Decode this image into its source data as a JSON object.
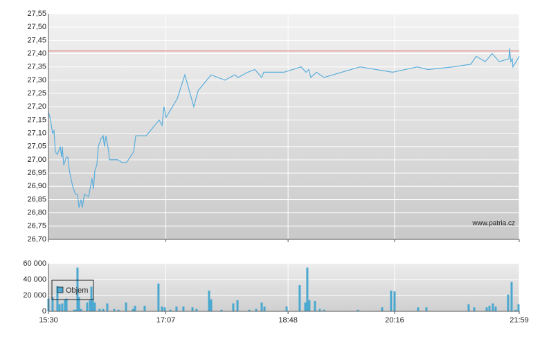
{
  "chart_data": [
    {
      "type": "line",
      "xlim": [
        930,
        1319
      ],
      "xticks": [
        {
          "value": 930,
          "label": "15:30"
        },
        {
          "value": 1027,
          "label": "17:07"
        },
        {
          "value": 1128,
          "label": "18:48"
        },
        {
          "value": 1216,
          "label": "20:16"
        },
        {
          "value": 1319,
          "label": "21:59"
        }
      ],
      "ylim": [
        26.7,
        27.55
      ],
      "yticks": [
        {
          "value": 26.7,
          "label": "26,70"
        },
        {
          "value": 26.75,
          "label": "26,75"
        },
        {
          "value": 26.8,
          "label": "26,80"
        },
        {
          "value": 26.85,
          "label": "26,85"
        },
        {
          "value": 26.9,
          "label": "26,90"
        },
        {
          "value": 26.95,
          "label": "26,95"
        },
        {
          "value": 27.0,
          "label": "27,00"
        },
        {
          "value": 27.05,
          "label": "27,05"
        },
        {
          "value": 27.1,
          "label": "27,10"
        },
        {
          "value": 27.15,
          "label": "27,15"
        },
        {
          "value": 27.2,
          "label": "27,20"
        },
        {
          "value": 27.25,
          "label": "27,25"
        },
        {
          "value": 27.3,
          "label": "27,30"
        },
        {
          "value": 27.35,
          "label": "27,35"
        },
        {
          "value": 27.4,
          "label": "27,40"
        },
        {
          "value": 27.45,
          "label": "27,45"
        },
        {
          "value": 27.5,
          "label": "27,50"
        },
        {
          "value": 27.55,
          "label": "27,55"
        }
      ],
      "grid": true,
      "reference_line": {
        "value": 27.41,
        "color": "#e06a6a"
      },
      "watermark": "www.patria.cz",
      "x": [
        930.0,
        931.7,
        933.4,
        934.6,
        935.7,
        937.4,
        939.7,
        940.9,
        941.4,
        942.6,
        944.9,
        946.0,
        947.2,
        950.0,
        952.3,
        954.0,
        955.2,
        956.9,
        958.0,
        959.7,
        963.2,
        966.0,
        967.2,
        968.3,
        970.0,
        971.2,
        973.5,
        975.2,
        976.3,
        977.5,
        979.8,
        980.3,
        982.1,
        983.2,
        987.2,
        990.6,
        994.6,
        1000.4,
        1002.1,
        1010.7,
        1021.5,
        1023.8,
        1025.5,
        1027.2,
        1036.4,
        1042.7,
        1050.1,
        1053.6,
        1064.4,
        1075.9,
        1083.9,
        1086.7,
        1094.7,
        1100.5,
        1106.2,
        1107.9,
        1124.5,
        1138.8,
        1142.8,
        1145.1,
        1146.8,
        1151.4,
        1157.7,
        1187.4,
        1214.3,
        1234.9,
        1243.5,
        1264.6,
        1278.9,
        1283.5,
        1290.9,
        1296.7,
        1302.4,
        1310.4,
        1311.0,
        1312.1,
        1313.2,
        1313.8,
        1319.0
      ],
      "series": [
        {
          "color": "#5aaedc",
          "values": [
            27.18,
            27.15,
            27.1,
            27.11,
            27.03,
            27.02,
            27.05,
            27.01,
            27.05,
            26.98,
            27.01,
            27.01,
            26.96,
            26.9,
            26.87,
            26.87,
            26.82,
            26.85,
            26.82,
            26.87,
            26.86,
            26.93,
            26.89,
            26.96,
            26.98,
            27.05,
            27.08,
            27.09,
            27.05,
            27.09,
            27.03,
            27.0,
            27.0,
            27.0,
            27.0,
            26.99,
            26.99,
            27.03,
            27.09,
            27.09,
            27.15,
            27.13,
            27.2,
            27.16,
            27.23,
            27.32,
            27.2,
            27.26,
            27.32,
            27.3,
            27.32,
            27.31,
            27.33,
            27.34,
            27.31,
            27.33,
            27.33,
            27.35,
            27.33,
            27.34,
            27.31,
            27.33,
            27.31,
            27.35,
            27.33,
            27.35,
            27.34,
            27.35,
            27.36,
            27.39,
            27.37,
            27.4,
            27.37,
            27.38,
            27.42,
            27.37,
            27.38,
            27.35,
            27.39
          ]
        }
      ]
    },
    {
      "type": "bar",
      "ylim": [
        0,
        60000
      ],
      "yticks": [
        0,
        {
          "value": 20000,
          "label": "20 000"
        },
        {
          "value": 40000,
          "label": "40 000"
        },
        {
          "value": 60000,
          "label": "60 000"
        }
      ],
      "legend": "upper-left",
      "x": [
        930,
        933.4,
        937.4,
        939.2,
        941.4,
        943.7,
        944.9,
        951.2,
        952.9,
        954.0,
        955.2,
        956.9,
        962.0,
        964.3,
        965.5,
        966.6,
        968.3,
        972.3,
        975.2,
        978.6,
        984.3,
        987.8,
        994.1,
        999.8,
        1001.5,
        1009.5,
        1020.9,
        1023.8,
        1026.1,
        1030.7,
        1035.8,
        1041.5,
        1049.0,
        1052.4,
        1062.7,
        1064.4,
        1073.0,
        1082.7,
        1086.2,
        1095.9,
        1101.6,
        1106.2,
        1108.5,
        1126.8,
        1137.6,
        1142.2,
        1143.9,
        1145.6,
        1150.2,
        1154.2,
        1157.7,
        1185.7,
        1205.7,
        1213.1,
        1216.0,
        1235.4,
        1242.3,
        1277.2,
        1281.8,
        1292.1,
        1294.4,
        1297.2,
        1299.5,
        1309.8,
        1312.7,
        1316.1,
        1318.4
      ],
      "series": [
        {
          "name": "Objem",
          "color": "#4aa8d0",
          "values": [
            16000,
            18000,
            32000,
            9000,
            10000,
            15000,
            16000,
            2000,
            2000,
            55000,
            18000,
            3000,
            11000,
            14000,
            31000,
            16000,
            11000,
            3000,
            3000,
            10000,
            3000,
            2000,
            11000,
            3000,
            7000,
            7000,
            35000,
            6000,
            5000,
            2000,
            6000,
            6000,
            5000,
            3000,
            26000,
            15000,
            2000,
            10000,
            14000,
            2000,
            3000,
            11000,
            6000,
            6000,
            33000,
            11000,
            55000,
            14000,
            13000,
            3000,
            2000,
            2000,
            5000,
            26000,
            25000,
            5000,
            5000,
            9000,
            5000,
            5000,
            7000,
            10000,
            6000,
            21000,
            37000,
            2000,
            9000
          ]
        }
      ]
    }
  ]
}
